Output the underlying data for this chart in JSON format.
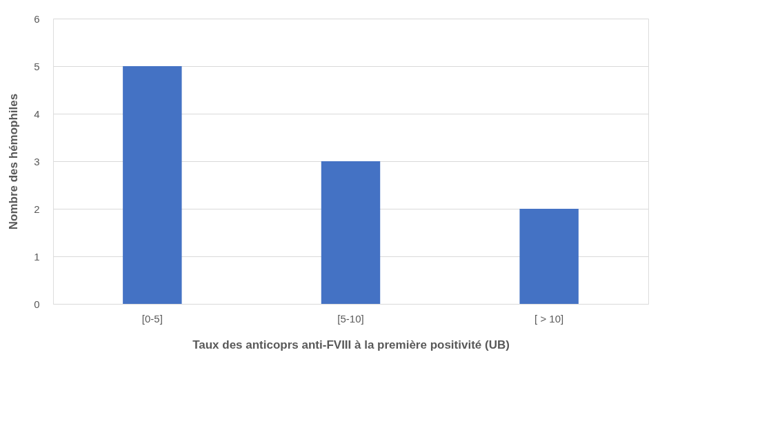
{
  "chart_data": {
    "type": "bar",
    "xlabel": "Taux des anticoprs anti-FVIII à la première positivité (UB)",
    "ylabel": "Nombre des hémophiles",
    "categories": [
      "[0-5]",
      "[5-10]",
      "[ > 10]"
    ],
    "values": [
      5,
      3,
      2
    ],
    "color": "#4472c4",
    "ylim": [
      0,
      6
    ],
    "yticks": [
      0,
      1,
      2,
      3,
      4,
      5,
      6
    ],
    "grid": "y"
  }
}
